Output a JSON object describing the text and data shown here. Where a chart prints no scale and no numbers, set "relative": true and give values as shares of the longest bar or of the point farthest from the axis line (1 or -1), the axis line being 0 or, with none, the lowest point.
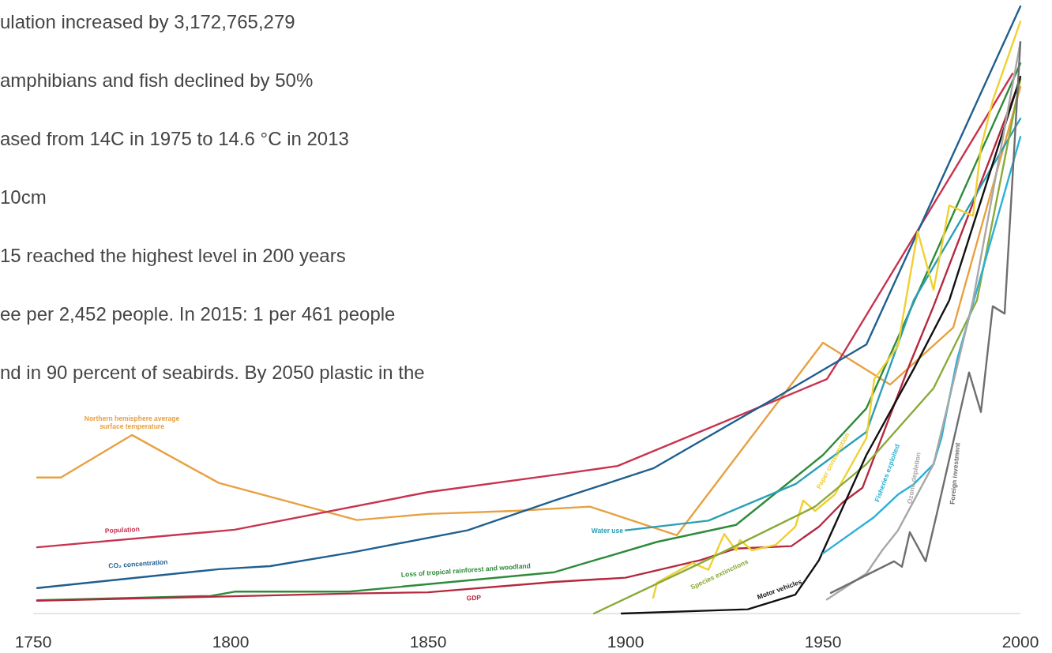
{
  "chart_data": {
    "type": "line",
    "relative": true,
    "xlim": [
      1750,
      2000
    ],
    "xticks": [
      1750,
      1800,
      1850,
      1900,
      1950,
      2000
    ],
    "annotations": [
      "ulation increased by 3,172,765,279",
      "amphibians and fish declined by 50%",
      "ased from 14C in 1975 to 14.6 °C in 2013",
      "10cm",
      "15 reached the highest level in 200 years",
      "ee per 2,452 people. In 2015: 1 per 461 people",
      "nd in 90 percent of seabirds. By 2050 plastic in the"
    ],
    "series": [
      {
        "name": "Northern hemisphere average surface temperature",
        "color": "#e8a040",
        "x": [
          1751,
          1757,
          1775,
          1797,
          1832,
          1850,
          1872,
          1891,
          1913,
          1950,
          1967,
          1983,
          2000
        ],
        "values": [
          0.224,
          0.224,
          0.294,
          0.215,
          0.154,
          0.164,
          0.169,
          0.176,
          0.129,
          0.446,
          0.377,
          0.471,
          0.867
        ]
      },
      {
        "name": "Population",
        "color": "#c8334f",
        "x": [
          1751,
          1801,
          1850,
          1884,
          1898,
          1951,
          1955,
          1998
        ],
        "values": [
          0.109,
          0.138,
          0.2,
          0.23,
          0.243,
          0.386,
          0.427,
          0.889
        ]
      },
      {
        "name": "CO₂ concentration",
        "color": "#1f5f8f",
        "x": [
          1751,
          1797,
          1810,
          1831,
          1860,
          1882,
          1907,
          1939,
          1961,
          2000
        ],
        "values": [
          0.042,
          0.073,
          0.078,
          0.101,
          0.137,
          0.186,
          0.239,
          0.359,
          0.443,
          1.0
        ]
      },
      {
        "name": "Loss of tropical rainforest and woodland",
        "color": "#2e8b3a",
        "x": [
          1751,
          1795,
          1801,
          1830,
          1882,
          1908,
          1928,
          1950,
          1961,
          2000
        ],
        "values": [
          0.022,
          0.029,
          0.036,
          0.036,
          0.068,
          0.118,
          0.146,
          0.261,
          0.338,
          0.906
        ]
      },
      {
        "name": "GDP",
        "color": "#b5283f",
        "x": [
          1751,
          1831,
          1850,
          1882,
          1900,
          1919,
          1928,
          1942,
          1949,
          1955,
          1960,
          1972,
          1978,
          2000
        ],
        "values": [
          0.021,
          0.033,
          0.035,
          0.052,
          0.059,
          0.088,
          0.107,
          0.111,
          0.143,
          0.183,
          0.207,
          0.411,
          0.506,
          0.88
        ]
      },
      {
        "name": "Water use",
        "color": "#2a9fb5",
        "x": [
          1900,
          1921,
          1943,
          1961,
          1973,
          2000
        ],
        "values": [
          0.137,
          0.153,
          0.213,
          0.299,
          0.516,
          0.815
        ]
      },
      {
        "name": "Paper consumption",
        "color": "#f0d030",
        "x": [
          1907,
          1908,
          1917,
          1921,
          1925,
          1928,
          1929,
          1932,
          1938,
          1943,
          1945,
          1948,
          1953,
          1961,
          1963,
          1969,
          1974,
          1978,
          1982,
          1988,
          1990,
          1993,
          2000
        ],
        "values": [
          0.026,
          0.051,
          0.083,
          0.072,
          0.131,
          0.104,
          0.121,
          0.104,
          0.113,
          0.143,
          0.186,
          0.169,
          0.196,
          0.289,
          0.386,
          0.441,
          0.629,
          0.533,
          0.672,
          0.655,
          0.767,
          0.845,
          0.975
        ]
      },
      {
        "name": "Species extinctions",
        "color": "#8aaa3a",
        "x": [
          1892,
          1919,
          1948,
          1961,
          1978,
          1989,
          2000
        ],
        "values": [
          0.0,
          0.083,
          0.176,
          0.246,
          0.371,
          0.516,
          0.88
        ]
      },
      {
        "name": "Motor vehicles",
        "color": "#111111",
        "x": [
          1899,
          1931,
          1943,
          1949,
          1961,
          1973,
          1982,
          2000
        ],
        "values": [
          0.0,
          0.007,
          0.031,
          0.088,
          0.261,
          0.403,
          0.516,
          0.884
        ]
      },
      {
        "name": "Fisheries exploited",
        "color": "#2ab0d8",
        "x": [
          1950,
          1963,
          1969,
          1973,
          1978,
          1980,
          1984,
          2000
        ],
        "values": [
          0.099,
          0.159,
          0.196,
          0.213,
          0.246,
          0.289,
          0.419,
          0.785
        ]
      },
      {
        "name": "Ozone depletion",
        "color": "#a8a8a8",
        "x": [
          1951,
          1961,
          1965,
          1969,
          1978,
          1988,
          2000
        ],
        "values": [
          0.023,
          0.066,
          0.104,
          0.137,
          0.246,
          0.516,
          0.941
        ]
      },
      {
        "name": "Foreign investment",
        "color": "#6e6e6e",
        "x": [
          1952,
          1968,
          1970,
          1972,
          1976,
          1979,
          1987,
          1990,
          1993,
          1996,
          2000
        ],
        "values": [
          0.034,
          0.086,
          0.077,
          0.134,
          0.086,
          0.169,
          0.397,
          0.332,
          0.506,
          0.494,
          0.941
        ]
      }
    ]
  }
}
